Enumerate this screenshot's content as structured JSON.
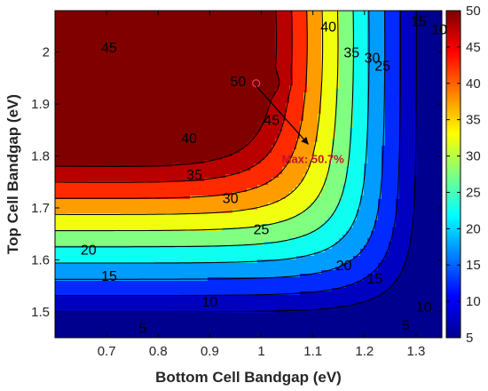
{
  "chart_data": {
    "type": "heatmap",
    "title": "",
    "xlabel": "Bottom Cell Bandgap (eV)",
    "ylabel": "Top Cell Bandgap (eV)",
    "xlim": [
      0.6,
      1.35
    ],
    "ylim": [
      1.45,
      2.08
    ],
    "x_ticks": [
      0.7,
      0.8,
      0.9,
      1.0,
      1.1,
      1.2,
      1.3
    ],
    "x_tick_labels": [
      "0.7",
      "0.8",
      "0.9",
      "1",
      "1.1",
      "1.2",
      "1.3"
    ],
    "y_ticks": [
      1.5,
      1.6,
      1.7,
      1.8,
      1.9,
      2.0
    ],
    "y_tick_labels": [
      "1.5",
      "1.6",
      "1.7",
      "1.8",
      "1.9",
      "2"
    ],
    "colorbar": {
      "min": 5,
      "max": 50,
      "ticks": [
        5,
        10,
        15,
        20,
        25,
        30,
        35,
        40,
        45,
        50
      ],
      "tick_labels": [
        "5",
        "10",
        "15",
        "20",
        "25",
        "30",
        "35",
        "40",
        "45",
        "50"
      ]
    },
    "contour_levels": [
      5,
      10,
      15,
      20,
      25,
      30,
      35,
      40,
      45,
      50
    ],
    "contour_labels": [
      {
        "text": "45",
        "x": 0.705,
        "y": 2.01
      },
      {
        "text": "50",
        "x": 0.955,
        "y": 1.945
      },
      {
        "text": "45",
        "x": 1.02,
        "y": 1.87
      },
      {
        "text": "40",
        "x": 0.86,
        "y": 1.835
      },
      {
        "text": "35",
        "x": 0.87,
        "y": 1.765
      },
      {
        "text": "30",
        "x": 0.94,
        "y": 1.72
      },
      {
        "text": "25",
        "x": 1.0,
        "y": 1.66
      },
      {
        "text": "20",
        "x": 0.665,
        "y": 1.62
      },
      {
        "text": "15",
        "x": 0.705,
        "y": 1.57
      },
      {
        "text": "10",
        "x": 0.9,
        "y": 1.52
      },
      {
        "text": "5",
        "x": 0.77,
        "y": 1.47
      },
      {
        "text": "40",
        "x": 1.13,
        "y": 2.05
      },
      {
        "text": "35",
        "x": 1.175,
        "y": 2.0
      },
      {
        "text": "30",
        "x": 1.215,
        "y": 1.99
      },
      {
        "text": "25",
        "x": 1.235,
        "y": 1.975
      },
      {
        "text": "15",
        "x": 1.305,
        "y": 2.06
      },
      {
        "text": "10",
        "x": 1.345,
        "y": 2.045
      },
      {
        "text": "20",
        "x": 1.16,
        "y": 1.59
      },
      {
        "text": "15",
        "x": 1.22,
        "y": 1.565
      },
      {
        "text": "10",
        "x": 1.315,
        "y": 1.51
      },
      {
        "text": "5",
        "x": 1.28,
        "y": 1.475
      }
    ],
    "max_point": {
      "x": 0.99,
      "y": 1.94,
      "value": 50.7
    },
    "annotation": {
      "text": "Max: 50.7%",
      "x": 1.1,
      "y": 1.795
    }
  }
}
